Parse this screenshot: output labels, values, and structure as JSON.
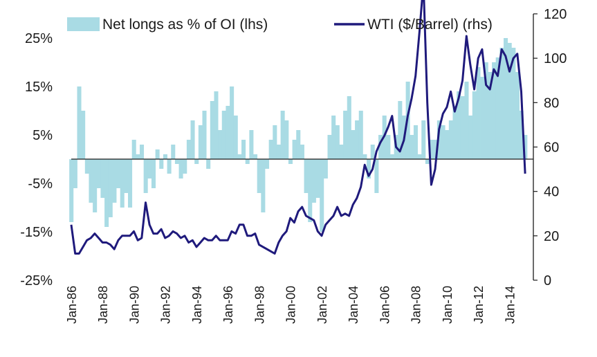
{
  "chart_data": {
    "type": "bar+line",
    "title": "",
    "legend": {
      "placement": "top",
      "entries": [
        {
          "label": "Net longs as % of OI (lhs)",
          "kind": "area",
          "color": "#a9dbe4"
        },
        {
          "label": "WTI ($/Barrel) (rhs)",
          "kind": "line",
          "color": "#1f1a7c"
        }
      ]
    },
    "x_axis": {
      "type": "date",
      "range": [
        "1986-01",
        "2015-02"
      ],
      "tick_labels": [
        "Jan-86",
        "Jan-88",
        "Jan-90",
        "Jan-92",
        "Jan-94",
        "Jan-96",
        "Jan-98",
        "Jan-00",
        "Jan-02",
        "Jan-04",
        "Jan-06",
        "Jan-08",
        "Jan-10",
        "Jan-12",
        "Jan-14"
      ],
      "tick_years": [
        1986,
        1988,
        1990,
        1992,
        1994,
        1996,
        1998,
        2000,
        2002,
        2004,
        2006,
        2008,
        2010,
        2012,
        2014
      ]
    },
    "y_left": {
      "range": [
        -25,
        30
      ],
      "ticks": [
        -25,
        -15,
        -5,
        5,
        15,
        25
      ],
      "tick_labels": [
        "-25%",
        "-15%",
        "-5%",
        "5%",
        "15%",
        "25%"
      ]
    },
    "y_right": {
      "range": [
        0,
        120
      ],
      "ticks": [
        0,
        20,
        40,
        60,
        80,
        100,
        120
      ],
      "tick_labels": [
        "0",
        "20",
        "40",
        "60",
        "80",
        "100",
        "120"
      ]
    },
    "grid": false,
    "series": [
      {
        "name": "Net longs as % of OI (lhs)",
        "axis": "left",
        "color": "#a9dbe4",
        "x": [
          "1986-01",
          "1986-04",
          "1986-07",
          "1986-10",
          "1987-01",
          "1987-04",
          "1987-07",
          "1987-10",
          "1988-01",
          "1988-04",
          "1988-07",
          "1988-10",
          "1989-01",
          "1989-04",
          "1989-07",
          "1989-10",
          "1990-01",
          "1990-04",
          "1990-07",
          "1990-10",
          "1991-01",
          "1991-04",
          "1991-07",
          "1991-10",
          "1992-01",
          "1992-04",
          "1992-07",
          "1992-10",
          "1993-01",
          "1993-04",
          "1993-07",
          "1993-10",
          "1994-01",
          "1994-04",
          "1994-07",
          "1994-10",
          "1995-01",
          "1995-04",
          "1995-07",
          "1995-10",
          "1996-01",
          "1996-04",
          "1996-07",
          "1996-10",
          "1997-01",
          "1997-04",
          "1997-07",
          "1997-10",
          "1998-01",
          "1998-04",
          "1998-07",
          "1998-10",
          "1999-01",
          "1999-04",
          "1999-07",
          "1999-10",
          "2000-01",
          "2000-04",
          "2000-07",
          "2000-10",
          "2001-01",
          "2001-04",
          "2001-07",
          "2001-10",
          "2002-01",
          "2002-04",
          "2002-07",
          "2002-10",
          "2003-01",
          "2003-04",
          "2003-07",
          "2003-10",
          "2004-01",
          "2004-04",
          "2004-07",
          "2004-10",
          "2005-01",
          "2005-04",
          "2005-07",
          "2005-10",
          "2006-01",
          "2006-04",
          "2006-07",
          "2006-10",
          "2007-01",
          "2007-04",
          "2007-07",
          "2007-10",
          "2008-01",
          "2008-04",
          "2008-07",
          "2008-10",
          "2009-01",
          "2009-04",
          "2009-07",
          "2009-10",
          "2010-01",
          "2010-04",
          "2010-07",
          "2010-10",
          "2011-01",
          "2011-04",
          "2011-07",
          "2011-10",
          "2012-01",
          "2012-04",
          "2012-07",
          "2012-10",
          "2013-01",
          "2013-04",
          "2013-07",
          "2013-10",
          "2014-01",
          "2014-04",
          "2014-07",
          "2014-10",
          "2015-01"
        ],
        "values": [
          -13,
          -6,
          15,
          10,
          -3,
          -9,
          -11,
          -6,
          -8,
          -14,
          -12,
          -9,
          -6,
          -10,
          -7,
          -10,
          4,
          1,
          3,
          -7,
          -4,
          -6,
          2,
          -2,
          1,
          -3,
          3,
          -1,
          -4,
          -3,
          4,
          8,
          -1,
          7,
          10,
          -2,
          12,
          14,
          6,
          10,
          11,
          15,
          9,
          1,
          4,
          -1,
          6,
          1,
          -7,
          -11,
          -2,
          4,
          7,
          3,
          10,
          8,
          -1,
          4,
          6,
          3,
          -7,
          -13,
          -9,
          -8,
          -15,
          -4,
          5,
          9,
          7,
          3,
          10,
          13,
          6,
          8,
          10,
          1,
          -4,
          3,
          -7,
          5,
          9,
          5,
          1,
          5,
          12,
          9,
          16,
          5,
          7,
          1,
          8,
          -1,
          4,
          4,
          8,
          7,
          6,
          8,
          11,
          14,
          13,
          16,
          9,
          14,
          19,
          17,
          20,
          18,
          20,
          21,
          23,
          25,
          24,
          23,
          18,
          10,
          5
        ]
      },
      {
        "name": "WTI ($/Barrel) (rhs)",
        "axis": "right",
        "color": "#1f1a7c",
        "x": [
          "1986-01",
          "1986-04",
          "1986-07",
          "1986-10",
          "1987-01",
          "1987-04",
          "1987-07",
          "1987-10",
          "1988-01",
          "1988-04",
          "1988-07",
          "1988-10",
          "1989-01",
          "1989-04",
          "1989-07",
          "1989-10",
          "1990-01",
          "1990-04",
          "1990-07",
          "1990-10",
          "1991-01",
          "1991-04",
          "1991-07",
          "1991-10",
          "1992-01",
          "1992-04",
          "1992-07",
          "1992-10",
          "1993-01",
          "1993-04",
          "1993-07",
          "1993-10",
          "1994-01",
          "1994-04",
          "1994-07",
          "1994-10",
          "1995-01",
          "1995-04",
          "1995-07",
          "1995-10",
          "1996-01",
          "1996-04",
          "1996-07",
          "1996-10",
          "1997-01",
          "1997-04",
          "1997-07",
          "1997-10",
          "1998-01",
          "1998-04",
          "1998-07",
          "1998-10",
          "1999-01",
          "1999-04",
          "1999-07",
          "1999-10",
          "2000-01",
          "2000-04",
          "2000-07",
          "2000-10",
          "2001-01",
          "2001-04",
          "2001-07",
          "2001-10",
          "2002-01",
          "2002-04",
          "2002-07",
          "2002-10",
          "2003-01",
          "2003-04",
          "2003-07",
          "2003-10",
          "2004-01",
          "2004-04",
          "2004-07",
          "2004-10",
          "2005-01",
          "2005-04",
          "2005-07",
          "2005-10",
          "2006-01",
          "2006-04",
          "2006-07",
          "2006-10",
          "2007-01",
          "2007-04",
          "2007-07",
          "2007-10",
          "2008-01",
          "2008-04",
          "2008-07",
          "2008-10",
          "2009-01",
          "2009-04",
          "2009-07",
          "2009-10",
          "2010-01",
          "2010-04",
          "2010-07",
          "2010-10",
          "2011-01",
          "2011-04",
          "2011-07",
          "2011-10",
          "2012-01",
          "2012-04",
          "2012-07",
          "2012-10",
          "2013-01",
          "2013-04",
          "2013-07",
          "2013-10",
          "2014-01",
          "2014-04",
          "2014-07",
          "2014-10",
          "2015-01"
        ],
        "values": [
          25,
          12,
          12,
          15,
          18,
          19,
          21,
          19,
          17,
          17,
          16,
          14,
          18,
          20,
          20,
          20,
          22,
          18,
          19,
          35,
          25,
          21,
          21,
          23,
          19,
          20,
          22,
          21,
          19,
          20,
          17,
          18,
          15,
          17,
          19,
          18,
          18,
          20,
          18,
          18,
          18,
          22,
          21,
          25,
          25,
          20,
          20,
          21,
          16,
          15,
          14,
          13,
          12,
          17,
          20,
          22,
          28,
          26,
          31,
          33,
          29,
          28,
          27,
          22,
          20,
          25,
          27,
          29,
          33,
          29,
          30,
          29,
          34,
          37,
          42,
          52,
          47,
          50,
          58,
          62,
          65,
          69,
          74,
          60,
          58,
          63,
          74,
          82,
          92,
          112,
          134,
          80,
          43,
          50,
          68,
          75,
          78,
          85,
          76,
          82,
          90,
          110,
          97,
          86,
          100,
          104,
          88,
          86,
          95,
          92,
          104,
          101,
          94,
          100,
          102,
          85,
          48
        ]
      }
    ]
  }
}
